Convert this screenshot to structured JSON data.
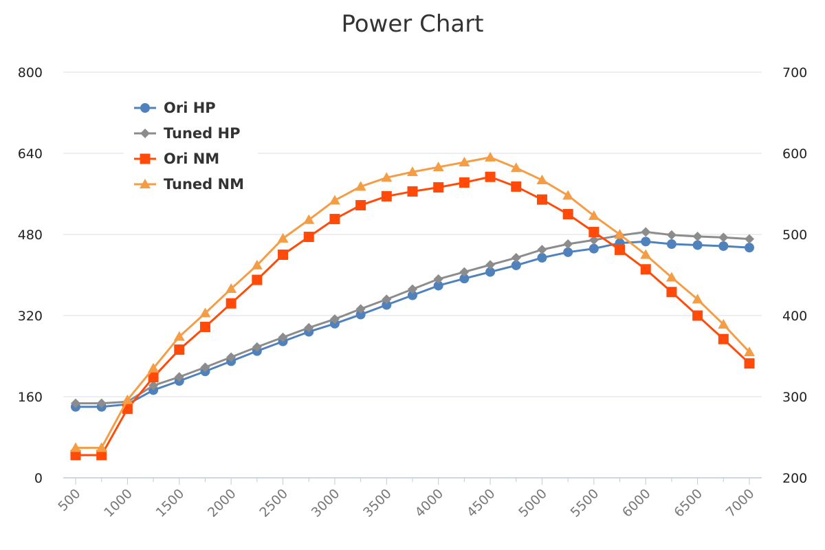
{
  "chart_data": {
    "type": "line",
    "title": "Power Chart",
    "x": [
      500,
      750,
      1000,
      1250,
      1500,
      1750,
      2000,
      2250,
      2500,
      2750,
      3000,
      3250,
      3500,
      3750,
      4000,
      4250,
      4500,
      4750,
      5000,
      5250,
      5500,
      5750,
      6000,
      6250,
      6500,
      6750,
      7000
    ],
    "x_ticks": [
      "500",
      "1000",
      "1500",
      "2000",
      "2500",
      "3000",
      "3500",
      "4000",
      "4500",
      "5000",
      "5500",
      "6000",
      "6500",
      "7000"
    ],
    "y_left": {
      "range": [
        0,
        800
      ],
      "ticks": [
        "0",
        "160",
        "320",
        "480",
        "640",
        "800"
      ]
    },
    "y_right": {
      "range": [
        200,
        700
      ],
      "ticks": [
        "200",
        "300",
        "400",
        "500",
        "600",
        "700"
      ]
    },
    "grid": true,
    "legend_position": "top-left",
    "series": [
      {
        "name": "Ori HP",
        "axis": "left",
        "color": "#4f81bd",
        "marker": "circle",
        "values": [
          140,
          140,
          145,
          173,
          191,
          210,
          230,
          250,
          269,
          288,
          304,
          322,
          341,
          360,
          379,
          393,
          406,
          419,
          434,
          445,
          452,
          463,
          466,
          461,
          459,
          457,
          454
        ]
      },
      {
        "name": "Tuned HP",
        "axis": "left",
        "color": "#8c8c8c",
        "marker": "diamond",
        "values": [
          147,
          147,
          150,
          182,
          199,
          218,
          238,
          258,
          277,
          296,
          313,
          333,
          352,
          372,
          392,
          406,
          420,
          434,
          450,
          461,
          469,
          478,
          485,
          479,
          476,
          474,
          471
        ]
      },
      {
        "name": "Ori NM",
        "axis": "right",
        "color": "#ff4a0a",
        "marker": "square",
        "values": [
          228,
          228,
          285,
          324,
          358,
          386,
          415,
          444,
          475,
          497,
          519,
          536,
          547,
          553,
          558,
          564,
          571,
          559,
          543,
          525,
          503,
          481,
          457,
          429,
          400,
          371,
          341
        ]
      },
      {
        "name": "Tuned NM",
        "axis": "right",
        "color": "#f59d45",
        "marker": "triangle",
        "values": [
          237,
          237,
          296,
          335,
          374,
          403,
          433,
          462,
          495,
          518,
          542,
          559,
          570,
          577,
          583,
          589,
          595,
          582,
          567,
          548,
          523,
          500,
          475,
          447,
          420,
          389,
          355
        ]
      }
    ]
  }
}
